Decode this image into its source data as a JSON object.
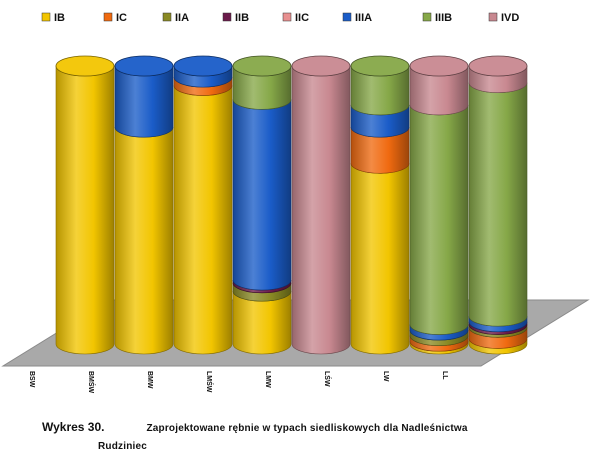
{
  "chart_data": {
    "type": "bar",
    "stacked": true,
    "percent": true,
    "style": "3d-cylinder",
    "legend_position": "top",
    "categories": [
      "BSW",
      "BMŚW",
      "BMW",
      "LMŚW",
      "LMW",
      "LŚW",
      "LW",
      "LL"
    ],
    "series": [
      {
        "name": "IB",
        "color": "#F2C500",
        "values": [
          100,
          78,
          93,
          19,
          0,
          65,
          1,
          2
        ]
      },
      {
        "name": "IC",
        "color": "#F06A10",
        "values": [
          0,
          0,
          3,
          0,
          0,
          13,
          2,
          4
        ]
      },
      {
        "name": "IIA",
        "color": "#8A8A24",
        "values": [
          0,
          0,
          0,
          3,
          0,
          0,
          2,
          1
        ]
      },
      {
        "name": "IIB",
        "color": "#6A1A4A",
        "values": [
          0,
          0,
          0,
          1,
          0,
          0,
          0,
          1
        ]
      },
      {
        "name": "IIC",
        "color": "#E89090",
        "values": [
          0,
          0,
          0,
          0,
          0,
          0,
          0,
          0
        ]
      },
      {
        "name": "IIIA",
        "color": "#1A5CC8",
        "values": [
          0,
          22,
          4,
          65,
          0,
          8,
          2,
          2
        ]
      },
      {
        "name": "IIIB",
        "color": "#86A848",
        "values": [
          0,
          0,
          0,
          12,
          0,
          14,
          79,
          84
        ]
      },
      {
        "name": "IVD",
        "color": "#C88890",
        "values": [
          0,
          0,
          0,
          0,
          100,
          0,
          14,
          6
        ]
      }
    ],
    "ylim": [
      0,
      100
    ]
  },
  "caption": {
    "number": "Wykres 30.",
    "title": "Zaprojektowane rębnie w typach siedliskowych dla Nadleśnictwa",
    "title_line2": "Rudziniec"
  }
}
